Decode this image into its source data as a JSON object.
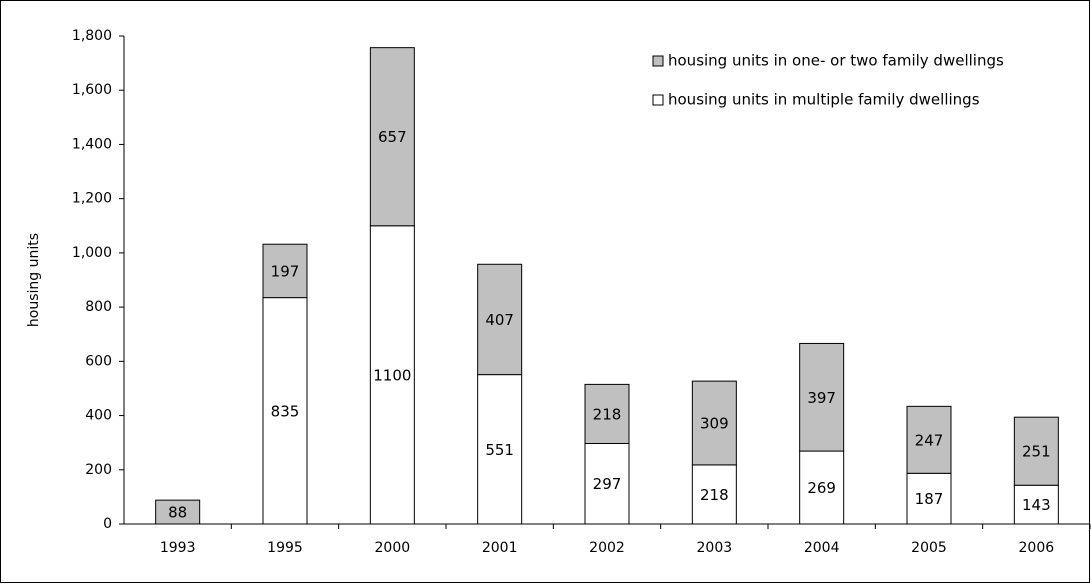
{
  "chart_data": {
    "type": "stacked-bar",
    "y_label": "housing units",
    "categories": [
      "1993",
      "1995",
      "2000",
      "2001",
      "2002",
      "2003",
      "2004",
      "2005",
      "2006"
    ],
    "series": [
      {
        "name": "housing units in one- or two family dwellings",
        "color": "#c0c0c0",
        "values": [
          88,
          197,
          657,
          407,
          218,
          309,
          397,
          247,
          251
        ]
      },
      {
        "name": "housing units in multiple family dwellings",
        "color": "#ffffff",
        "values": [
          null,
          835,
          1100,
          551,
          297,
          218,
          269,
          187,
          143
        ]
      }
    ],
    "ylim": [
      0,
      1800
    ],
    "yticks": [
      0,
      {
        "value": 200,
        "label": "200"
      },
      400,
      600,
      800,
      {
        "value": 1000,
        "label": "1,000"
      },
      {
        "value": 1200,
        "label": "1,200"
      },
      {
        "value": 1400,
        "label": "1,400"
      },
      {
        "value": 1600,
        "label": "1,600"
      },
      {
        "value": 1800,
        "label": "1,800"
      }
    ],
    "legend": "top-right"
  }
}
